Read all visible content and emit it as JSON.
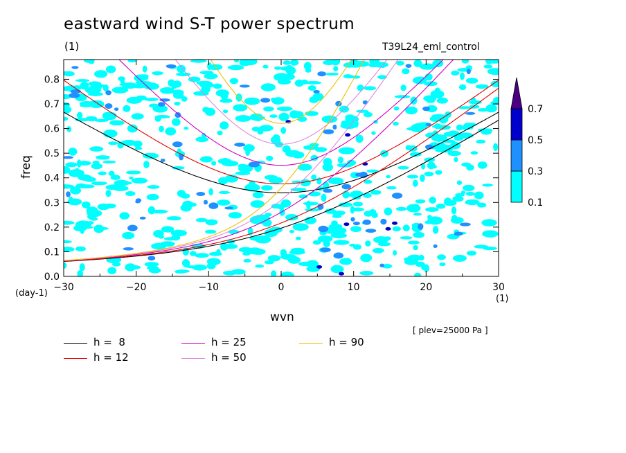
{
  "chart_data": {
    "type": "heatmap",
    "title": "eastward wind S-T power spectrum",
    "subtitle_left": "(1)",
    "subtitle_right": "T39L24_eml_control",
    "xlabel": "wvn",
    "ylabel": "freq",
    "x_unit": "(1)",
    "y_unit": "(day-1)",
    "xlim": [
      -30,
      30
    ],
    "ylim": [
      0,
      0.88
    ],
    "x_ticks": [
      -30,
      -20,
      -10,
      0,
      10,
      20,
      30
    ],
    "y_ticks": [
      0.0,
      0.1,
      0.2,
      0.3,
      0.4,
      0.5,
      0.6,
      0.7,
      0.8
    ],
    "colorbar": {
      "levels": [
        0.1,
        0.3,
        0.5,
        0.7
      ],
      "colors": [
        "#00ffff",
        "#1e90ff",
        "#0000cd",
        "#4b0082"
      ],
      "extend": "max"
    },
    "dispersion_curves": [
      {
        "label": "h =  8",
        "h": 8,
        "color": "#000000"
      },
      {
        "label": "h = 12",
        "h": 12,
        "color": "#e00000"
      },
      {
        "label": "h = 25",
        "h": 25,
        "color": "#d000c0"
      },
      {
        "label": "h = 50",
        "h": 50,
        "color": "#dd88dd"
      },
      {
        "label": "h = 90",
        "h": 90,
        "color": "#f0c000"
      }
    ],
    "annotation": "[ plev=25000 Pa ]",
    "grid": false
  }
}
